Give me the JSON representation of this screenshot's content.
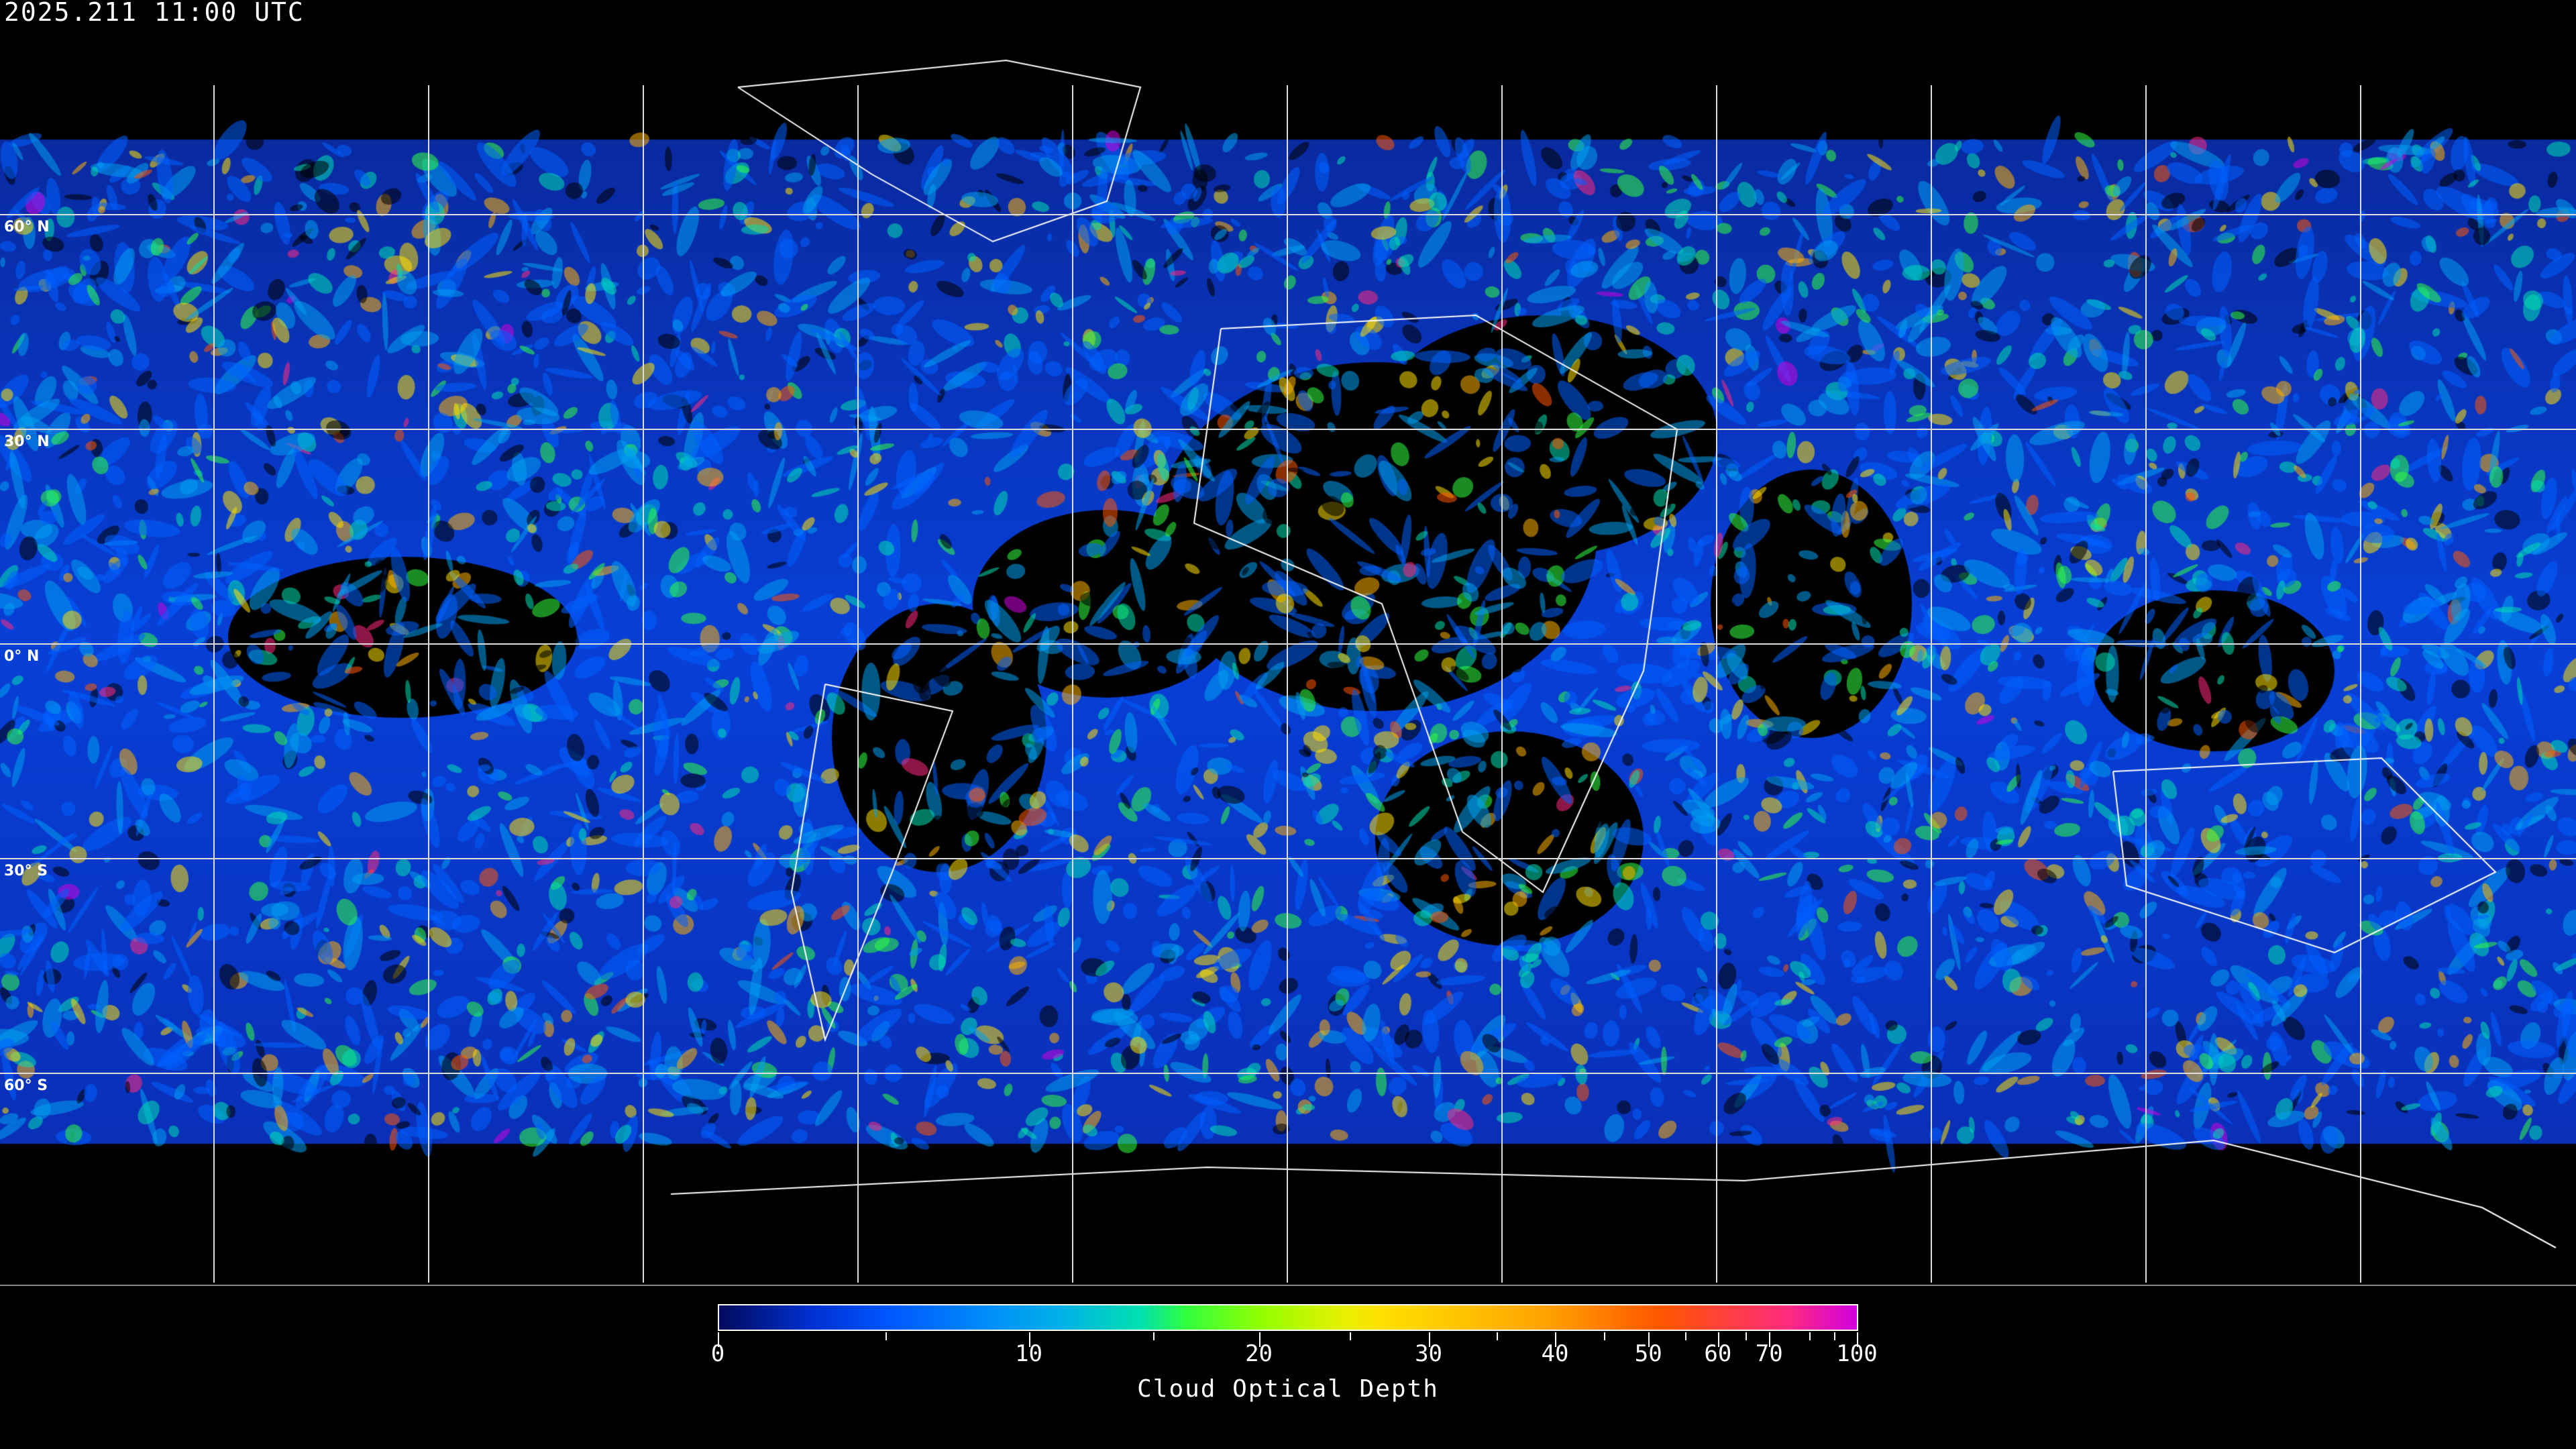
{
  "header": {
    "timestamp": "2025.211 11:00 UTC"
  },
  "map": {
    "projection": "equirectangular",
    "latitude_labels": [
      "60° N",
      "30° N",
      "0° N",
      "30° S",
      "60° S"
    ],
    "latitudes": [
      60,
      30,
      0,
      -30,
      -60
    ],
    "longitude_gridlines_every_deg": 30,
    "background_color": "#000000",
    "coastline_color": "#ffffff"
  },
  "colorbar": {
    "title": "Cloud Optical Depth",
    "min": 0,
    "max": 100,
    "tick_labels": [
      "0",
      "10",
      "20",
      "30",
      "40",
      "50",
      "60",
      "70",
      "100"
    ],
    "colors": [
      "#020a5c",
      "#0055ff",
      "#00b0e8",
      "#30ff40",
      "#90ff00",
      "#ffe000",
      "#ffa000",
      "#ff5500",
      "#d000e0"
    ]
  }
}
